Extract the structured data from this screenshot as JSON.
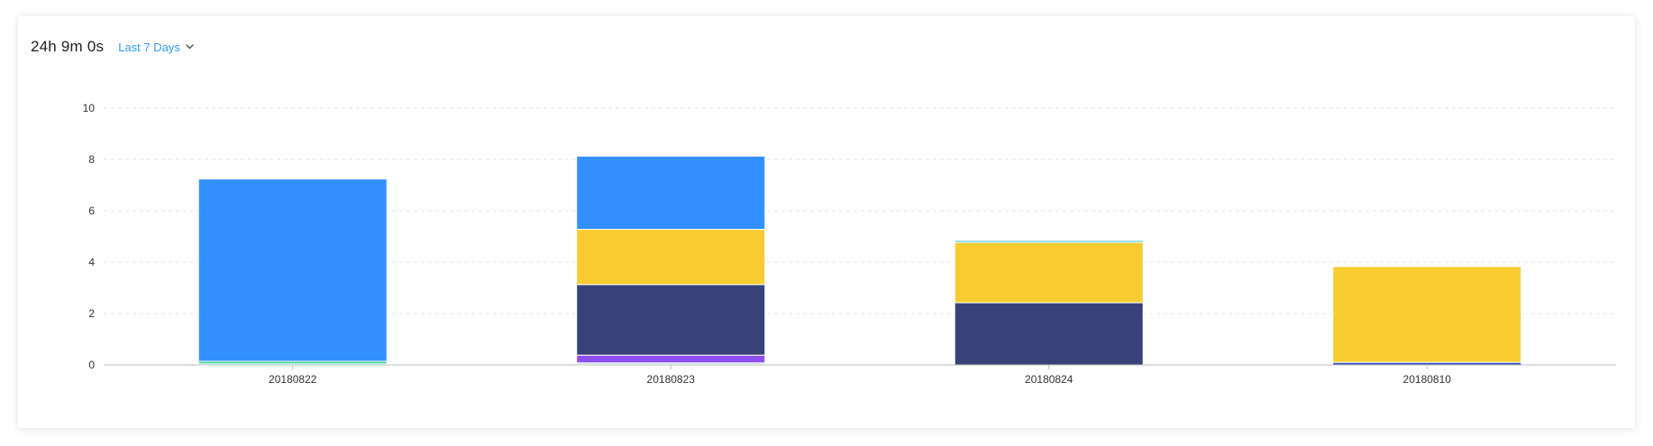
{
  "header": {
    "total_duration": "24h 9m 0s",
    "range_label": "Last 7 Days"
  },
  "chart_data": {
    "type": "bar",
    "stacked": true,
    "categories": [
      "20180822",
      "20180823",
      "20180824",
      "20180810"
    ],
    "ylim": [
      0,
      10
    ],
    "yticks": [
      0,
      2,
      4,
      6,
      8,
      10
    ],
    "grid": true,
    "legend": "none",
    "series": [
      {
        "color": "#3450b8",
        "values": [
          0,
          0.03,
          0,
          0.1
        ]
      },
      {
        "color": "#59c7f0",
        "values": [
          0.04,
          0.05,
          0,
          0
        ]
      },
      {
        "color": "#3dd598",
        "values": [
          0.1,
          0,
          0,
          0
        ]
      },
      {
        "color": "#8e4ff0",
        "values": [
          0,
          0.3,
          0,
          0
        ]
      },
      {
        "color": "#384279",
        "values": [
          0,
          2.75,
          2.42,
          0
        ]
      },
      {
        "color": "#f8cc30",
        "values": [
          0,
          2.15,
          2.35,
          3.73
        ]
      },
      {
        "color": "#5ed3f0",
        "values": [
          0,
          0,
          0.08,
          0
        ]
      },
      {
        "color": "#348ffe",
        "values": [
          7.1,
          2.85,
          0,
          0
        ]
      }
    ]
  }
}
